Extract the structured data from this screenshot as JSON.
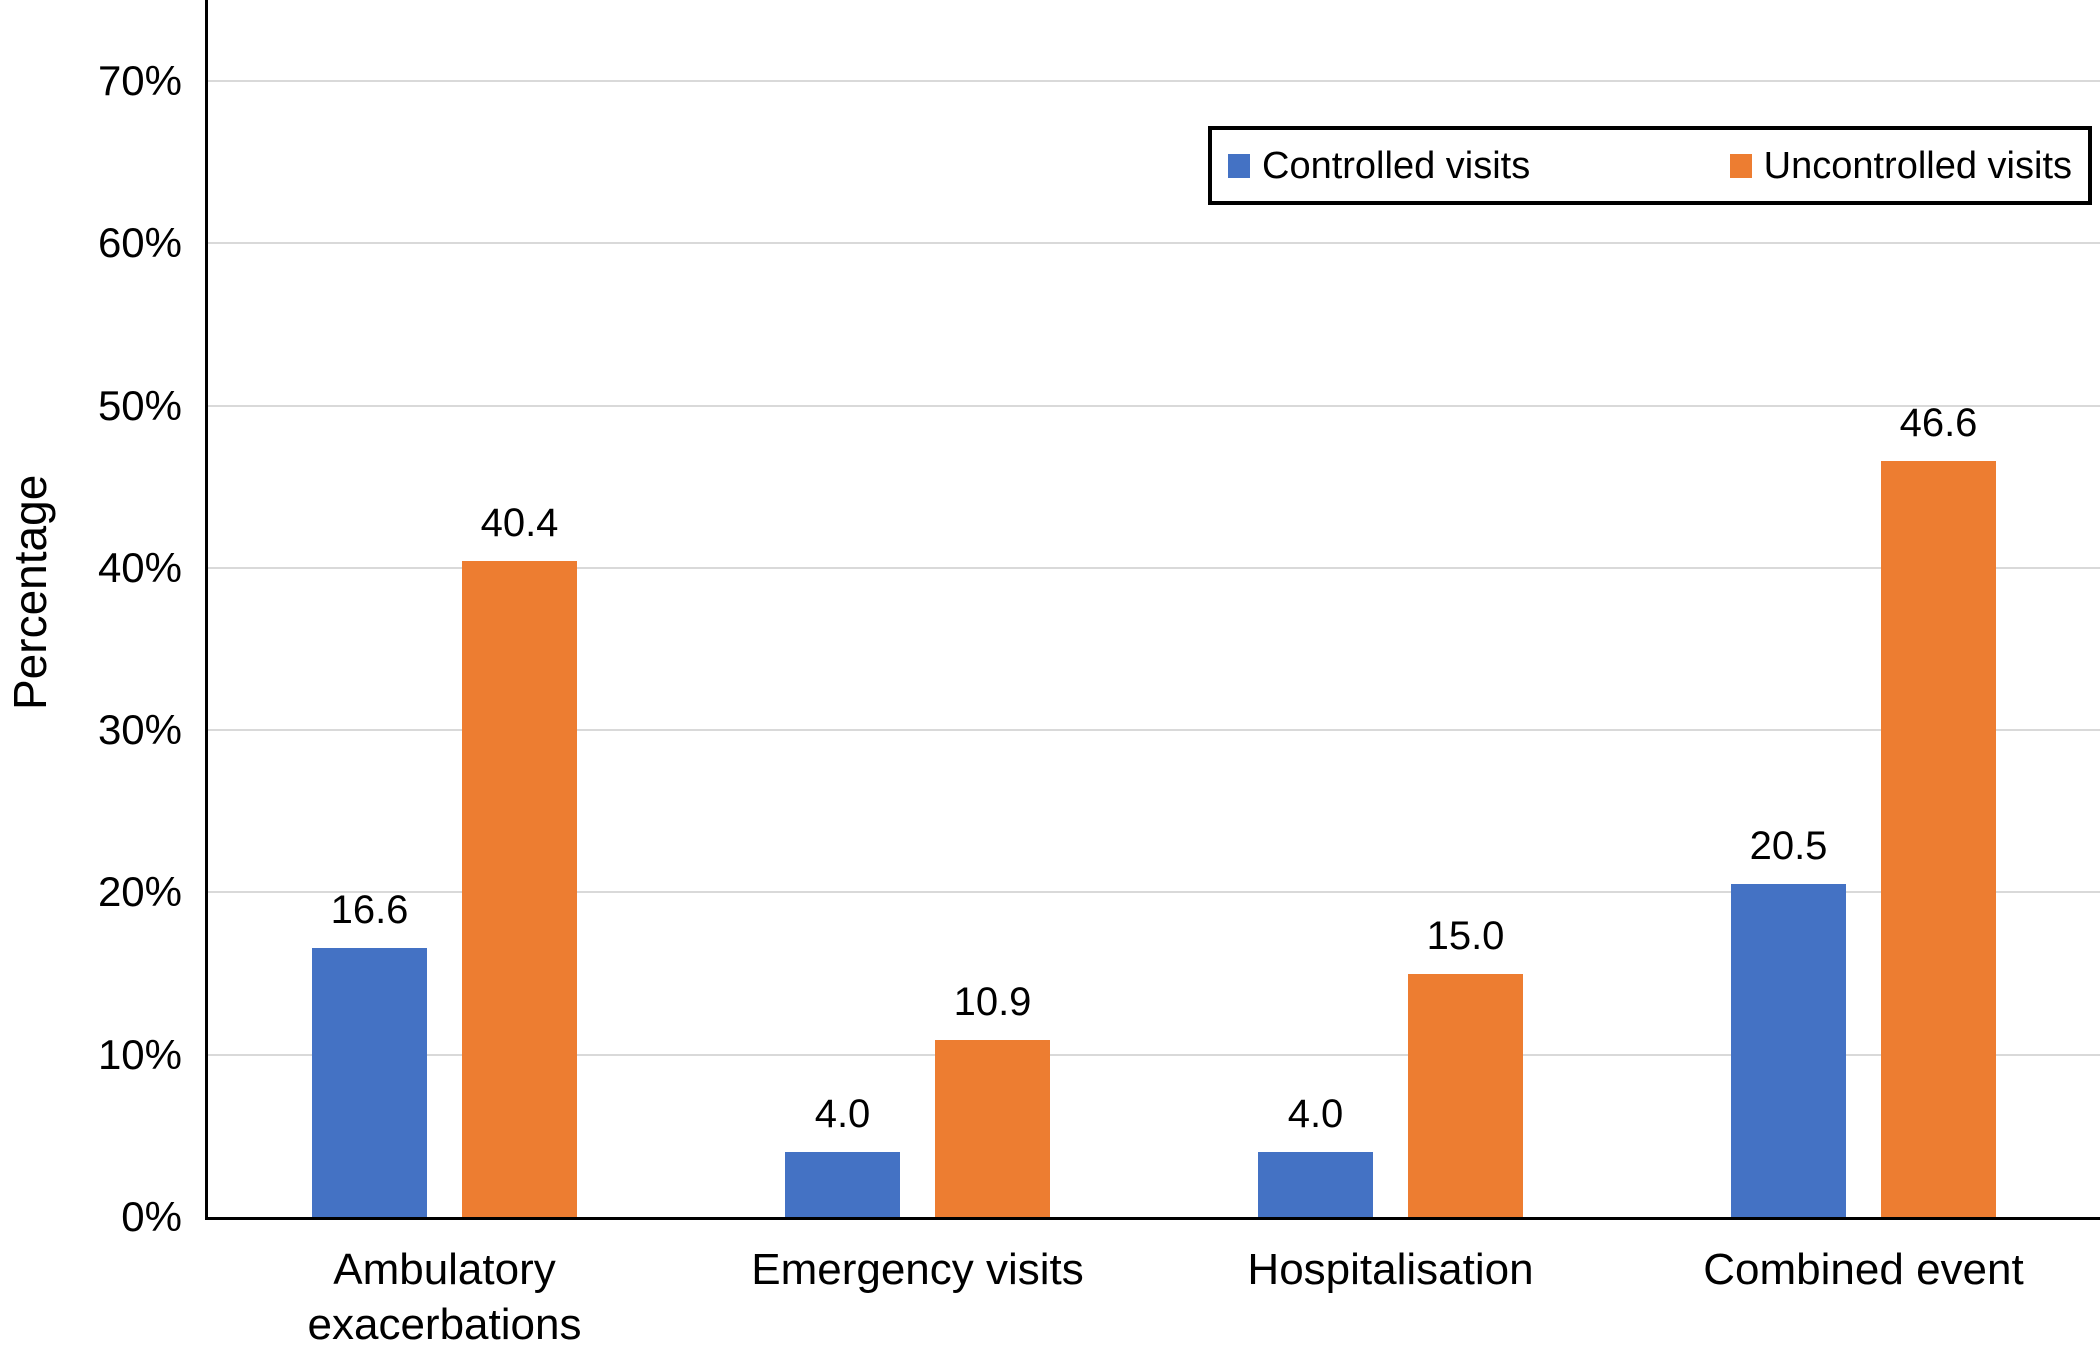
{
  "chart_data": {
    "type": "bar",
    "title": "",
    "xlabel": "",
    "ylabel": "Percentage",
    "categories": [
      "Ambulatory exacerbations",
      "Emergency visits",
      "Hospitalisation",
      "Combined event"
    ],
    "series": [
      {
        "name": "Controlled visits",
        "color": "#4472C4",
        "values": [
          16.6,
          4.0,
          4.0,
          20.5
        ],
        "labels": [
          "16.6",
          "4.0",
          "4.0",
          "20.5"
        ]
      },
      {
        "name": "Uncontrolled visits",
        "color": "#ED7D31",
        "values": [
          40.4,
          10.9,
          15.0,
          46.6
        ],
        "labels": [
          "40.4",
          "10.9",
          "15.0",
          "46.6"
        ]
      }
    ],
    "ylim": [
      0,
      75
    ],
    "ytick_values": [
      0,
      10,
      20,
      30,
      40,
      50,
      60,
      70
    ],
    "ytick_labels": [
      "0%",
      "10%",
      "20%",
      "30%",
      "40%",
      "50%",
      "60%",
      "70%"
    ],
    "grid": true,
    "legend_position": "top-right",
    "colors": {
      "grid": "#d9d9d9",
      "axis": "#000000",
      "text": "#000000",
      "background": "#ffffff"
    }
  }
}
